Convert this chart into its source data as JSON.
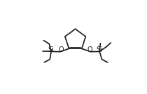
{
  "bg_color": "#ffffff",
  "line_color": "#1a1a1a",
  "line_width": 1.2,
  "font_size": 7.0,
  "figsize": [
    2.1,
    1.34
  ],
  "dpi": 100,
  "xlim": [
    0,
    10.5
  ],
  "ylim": [
    0,
    6.4
  ]
}
